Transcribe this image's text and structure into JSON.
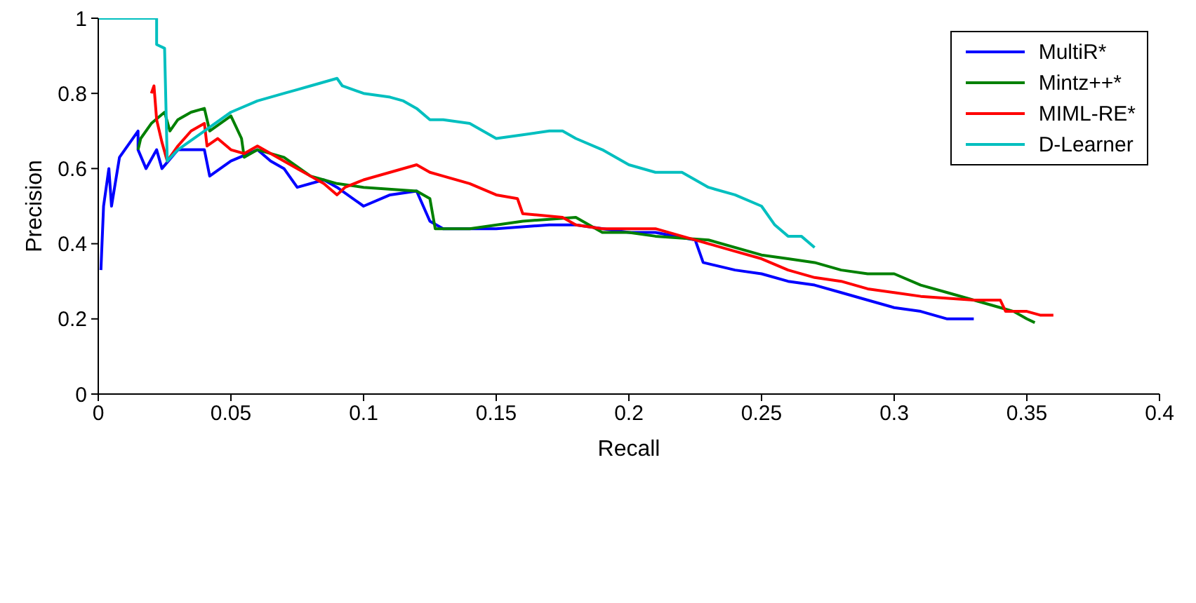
{
  "chart_data": {
    "type": "line",
    "xlabel": "Recall",
    "ylabel": "Precision",
    "xlim": [
      0,
      0.4
    ],
    "xticks": [
      0,
      0.05,
      0.1,
      0.15,
      0.2,
      0.25,
      0.3,
      0.35,
      0.4
    ],
    "ylim": [
      0,
      1
    ],
    "yticks": [
      0,
      0.2,
      0.4,
      0.6,
      0.8,
      1
    ],
    "grid": false,
    "legend": "top right",
    "marker": "none",
    "line_style": "solid",
    "series": [
      {
        "name": "MultiR*",
        "color": "#0000ff",
        "x": [
          0.001,
          0.002,
          0.004,
          0.005,
          0.008,
          0.015,
          0.015,
          0.018,
          0.022,
          0.024,
          0.03,
          0.04,
          0.042,
          0.05,
          0.06,
          0.065,
          0.07,
          0.075,
          0.085,
          0.09,
          0.1,
          0.11,
          0.12,
          0.125,
          0.13,
          0.15,
          0.17,
          0.18,
          0.2,
          0.21,
          0.225,
          0.228,
          0.24,
          0.25,
          0.26,
          0.27,
          0.28,
          0.29,
          0.3,
          0.31,
          0.32,
          0.33
        ],
        "values": [
          0.33,
          0.5,
          0.6,
          0.5,
          0.63,
          0.7,
          0.65,
          0.6,
          0.65,
          0.6,
          0.65,
          0.65,
          0.58,
          0.62,
          0.65,
          0.62,
          0.6,
          0.55,
          0.57,
          0.55,
          0.5,
          0.53,
          0.54,
          0.46,
          0.44,
          0.44,
          0.45,
          0.45,
          0.43,
          0.43,
          0.41,
          0.35,
          0.33,
          0.32,
          0.3,
          0.29,
          0.27,
          0.25,
          0.23,
          0.22,
          0.2,
          0.2
        ]
      },
      {
        "name": "Mintz++*",
        "color": "#008000",
        "x": [
          0.015,
          0.016,
          0.02,
          0.025,
          0.027,
          0.03,
          0.035,
          0.04,
          0.042,
          0.05,
          0.054,
          0.055,
          0.06,
          0.07,
          0.08,
          0.09,
          0.1,
          0.12,
          0.125,
          0.127,
          0.14,
          0.16,
          0.18,
          0.19,
          0.2,
          0.21,
          0.23,
          0.25,
          0.26,
          0.27,
          0.28,
          0.29,
          0.3,
          0.31,
          0.32,
          0.33,
          0.34,
          0.345,
          0.35,
          0.353
        ],
        "values": [
          0.65,
          0.68,
          0.72,
          0.75,
          0.7,
          0.73,
          0.75,
          0.76,
          0.7,
          0.74,
          0.68,
          0.63,
          0.65,
          0.63,
          0.58,
          0.56,
          0.55,
          0.54,
          0.52,
          0.44,
          0.44,
          0.46,
          0.47,
          0.43,
          0.43,
          0.42,
          0.41,
          0.37,
          0.36,
          0.35,
          0.33,
          0.32,
          0.32,
          0.29,
          0.27,
          0.25,
          0.23,
          0.22,
          0.2,
          0.19
        ]
      },
      {
        "name": "MIML-RE*",
        "color": "#ff0000",
        "x": [
          0.02,
          0.021,
          0.022,
          0.024,
          0.026,
          0.03,
          0.035,
          0.04,
          0.041,
          0.045,
          0.05,
          0.055,
          0.06,
          0.065,
          0.07,
          0.075,
          0.08,
          0.085,
          0.09,
          0.093,
          0.1,
          0.11,
          0.12,
          0.125,
          0.13,
          0.14,
          0.15,
          0.158,
          0.16,
          0.175,
          0.18,
          0.19,
          0.21,
          0.22,
          0.23,
          0.24,
          0.25,
          0.26,
          0.27,
          0.28,
          0.29,
          0.3,
          0.31,
          0.33,
          0.34,
          0.342,
          0.35,
          0.355,
          0.36
        ],
        "values": [
          0.8,
          0.82,
          0.73,
          0.67,
          0.62,
          0.66,
          0.7,
          0.72,
          0.66,
          0.68,
          0.65,
          0.64,
          0.66,
          0.64,
          0.62,
          0.6,
          0.58,
          0.56,
          0.53,
          0.55,
          0.57,
          0.59,
          0.61,
          0.59,
          0.58,
          0.56,
          0.53,
          0.52,
          0.48,
          0.47,
          0.45,
          0.44,
          0.44,
          0.42,
          0.4,
          0.38,
          0.36,
          0.33,
          0.31,
          0.3,
          0.28,
          0.27,
          0.26,
          0.25,
          0.25,
          0.22,
          0.22,
          0.21,
          0.21
        ]
      },
      {
        "name": "D-Learner",
        "color": "#00bfbf",
        "x": [
          0,
          0.022,
          0.022,
          0.025,
          0.026,
          0.03,
          0.04,
          0.05,
          0.06,
          0.07,
          0.075,
          0.08,
          0.09,
          0.092,
          0.1,
          0.11,
          0.115,
          0.12,
          0.125,
          0.13,
          0.14,
          0.145,
          0.15,
          0.16,
          0.17,
          0.175,
          0.18,
          0.19,
          0.2,
          0.21,
          0.22,
          0.23,
          0.24,
          0.25,
          0.255,
          0.26,
          0.265,
          0.27
        ],
        "values": [
          1,
          1,
          0.93,
          0.92,
          0.62,
          0.65,
          0.7,
          0.75,
          0.78,
          0.8,
          0.81,
          0.82,
          0.84,
          0.82,
          0.8,
          0.79,
          0.78,
          0.76,
          0.73,
          0.73,
          0.72,
          0.7,
          0.68,
          0.69,
          0.7,
          0.7,
          0.68,
          0.65,
          0.61,
          0.59,
          0.59,
          0.55,
          0.53,
          0.5,
          0.45,
          0.42,
          0.42,
          0.39
        ]
      }
    ]
  }
}
